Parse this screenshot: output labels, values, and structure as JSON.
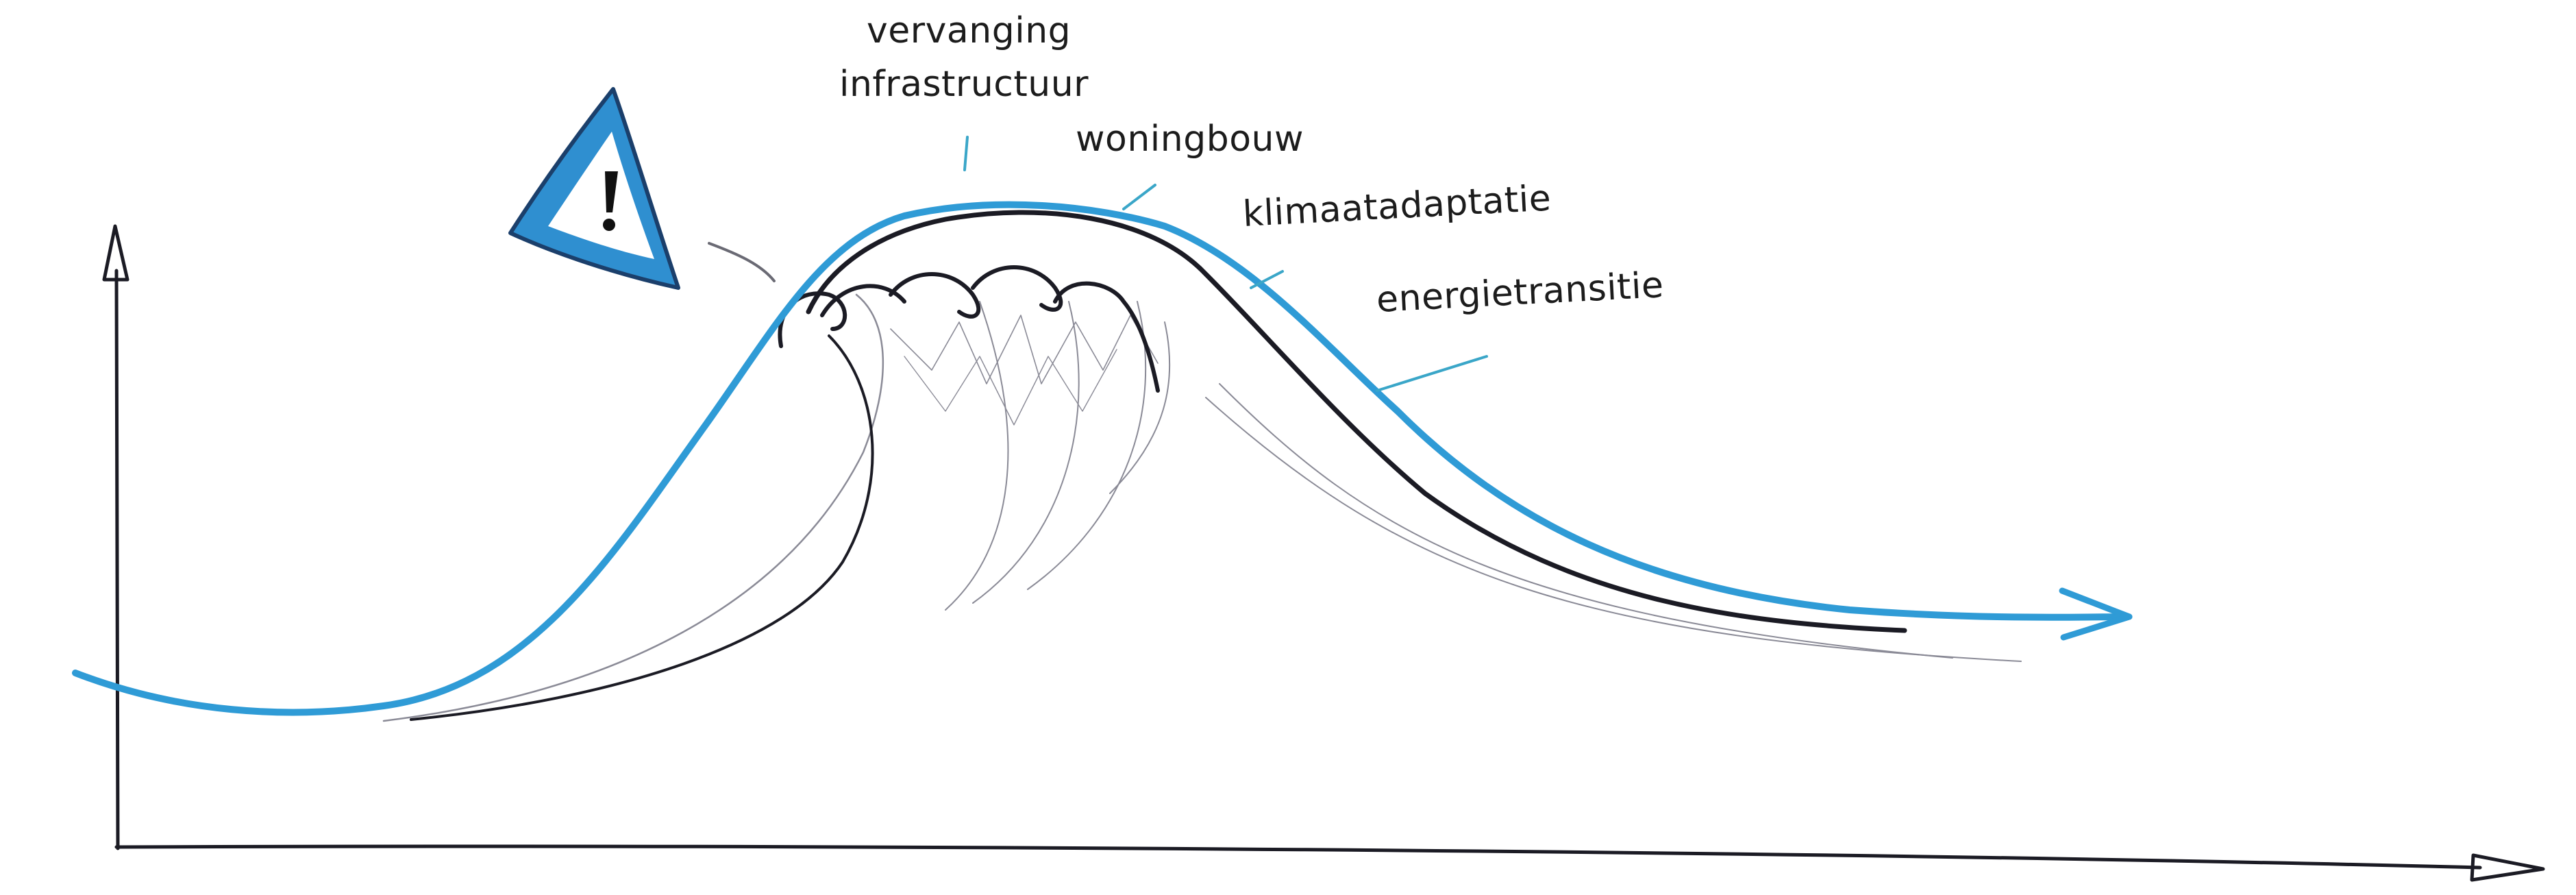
{
  "labels": {
    "vervanging_line1": "vervanging",
    "vervanging_line2": "infrastructuur",
    "woningbouw": "woningbouw",
    "klimaatadaptatie": "klimaatadaptatie",
    "energietransitie": "energietransitie"
  },
  "icons": {
    "warning": "warning-triangle-icon"
  },
  "colors": {
    "curve": "#2f9bd6",
    "ink": "#1b1b24",
    "light_ink": "#8a8a96",
    "tick": "#3aa6c8",
    "warning_fill": "#2f8fd0",
    "warning_inner": "#ffffff"
  }
}
